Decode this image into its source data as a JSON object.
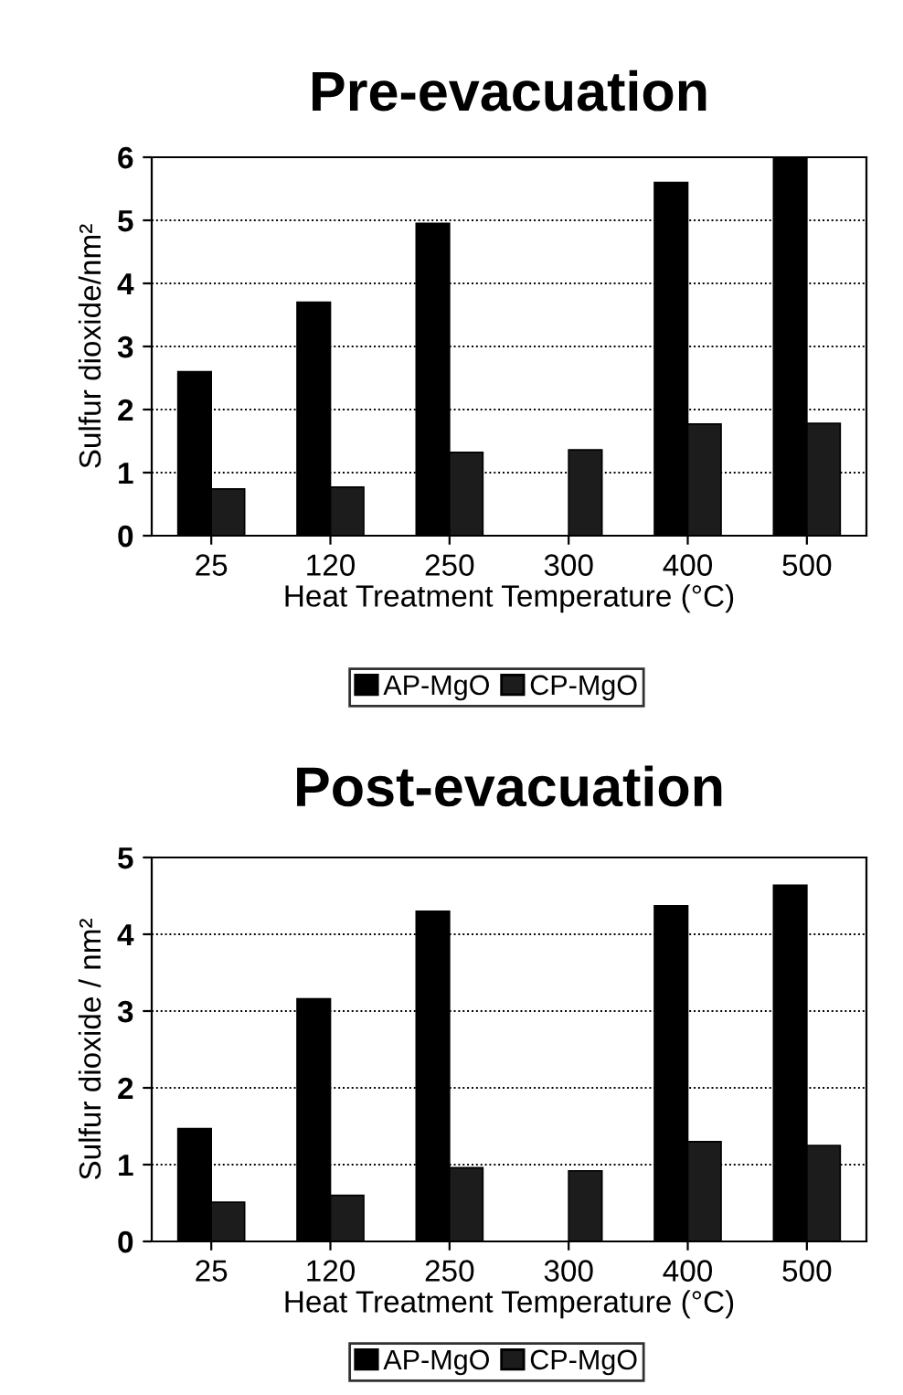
{
  "chart_data": [
    {
      "type": "bar",
      "title": "Pre-evacuation",
      "xlabel": "Heat Treatment Temperature (°C)",
      "ylabel": "Sulfur dioxide/nm²",
      "categories": [
        "25",
        "120",
        "250",
        "300",
        "400",
        "500"
      ],
      "ylim": [
        0,
        6
      ],
      "yticks": [
        0,
        1,
        2,
        3,
        4,
        5,
        6
      ],
      "grid": "y",
      "legend": "bottom",
      "series": [
        {
          "name": "AP-MgO",
          "color": "#000000",
          "values": [
            2.6,
            3.7,
            4.95,
            null,
            5.6,
            6.0
          ]
        },
        {
          "name": "CP-MgO",
          "color": "#1c1c1c",
          "values": [
            0.74,
            0.77,
            1.32,
            1.36,
            1.77,
            1.78
          ]
        }
      ]
    },
    {
      "type": "bar",
      "title": "Post-evacuation",
      "xlabel": "Heat Treatment Temperature (°C)",
      "ylabel": "Sulfur dioxide / nm²",
      "categories": [
        "25",
        "120",
        "250",
        "300",
        "400",
        "500"
      ],
      "ylim": [
        0,
        5
      ],
      "yticks": [
        0,
        1,
        2,
        3,
        4,
        5
      ],
      "grid": "y",
      "legend": "bottom",
      "series": [
        {
          "name": "AP-MgO",
          "color": "#000000",
          "values": [
            1.47,
            3.16,
            4.3,
            null,
            4.37,
            4.64
          ]
        },
        {
          "name": "CP-MgO",
          "color": "#1c1c1c",
          "values": [
            0.51,
            0.6,
            0.96,
            0.92,
            1.3,
            1.25
          ]
        }
      ]
    }
  ]
}
